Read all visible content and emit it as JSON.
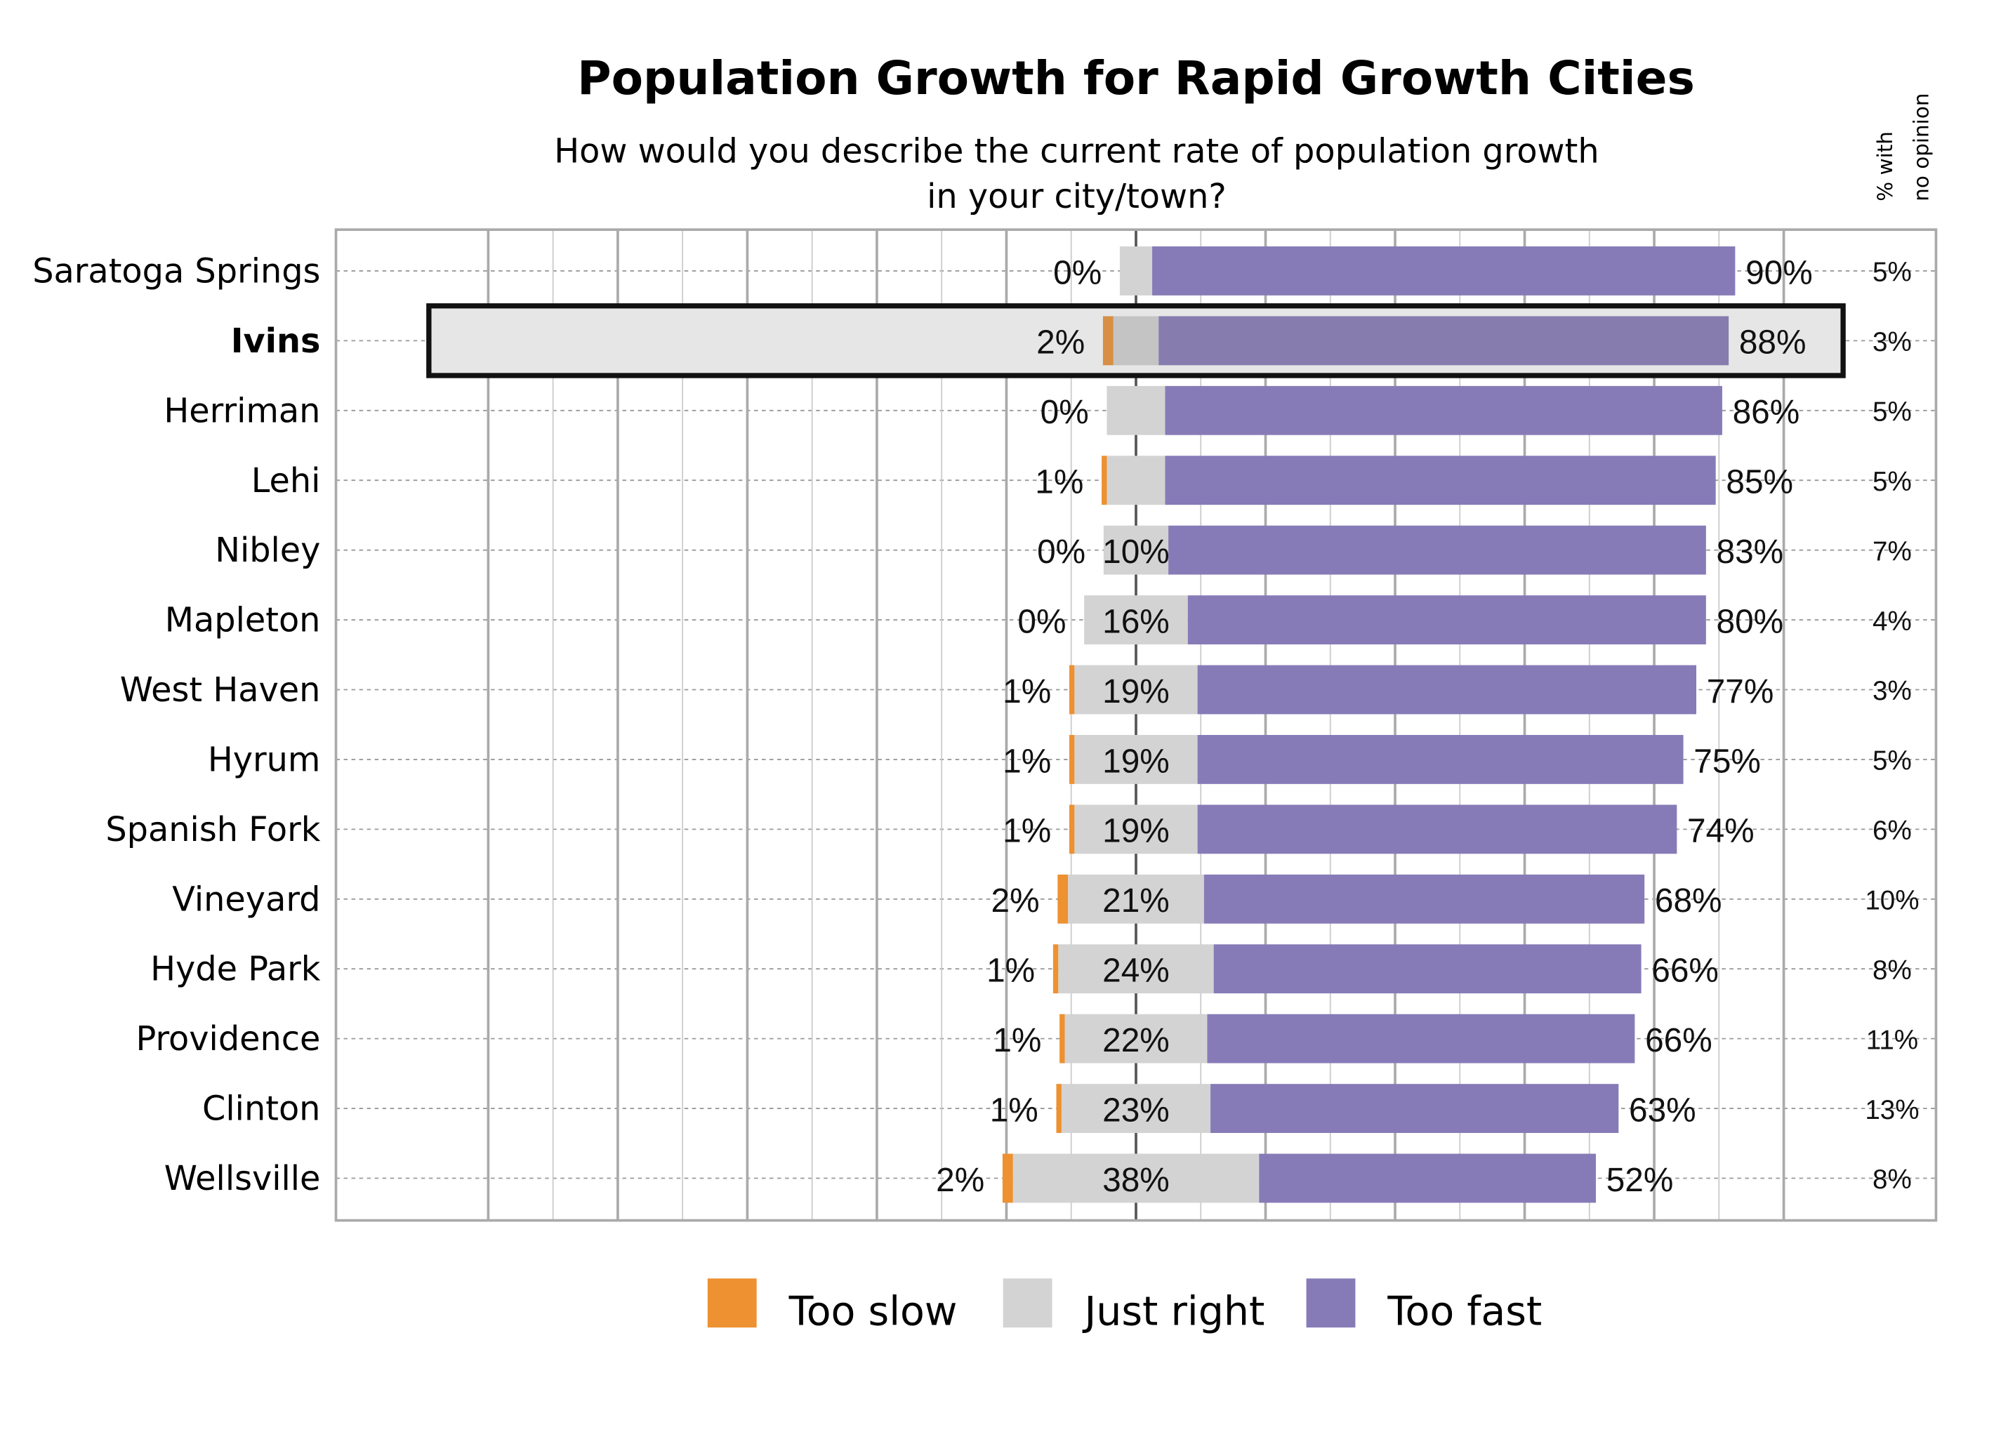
{
  "chart_data": {
    "type": "bar",
    "orientation": "horizontal-diverging-stacked",
    "title": "Population Growth for Rapid Growth Cities",
    "subtitle": [
      "How would you describe the current rate of population growth",
      "in your city/town?"
    ],
    "side_header": [
      "% with",
      "no opinion"
    ],
    "highlight": "Ivins",
    "categories": [
      "Saratoga Springs",
      "Ivins",
      "Herriman",
      "Lehi",
      "Nibley",
      "Mapleton",
      "West Haven",
      "Hyrum",
      "Spanish Fork",
      "Vineyard",
      "Hyde Park",
      "Providence",
      "Clinton",
      "Wellsville"
    ],
    "series": [
      {
        "name": "Too slow",
        "color": "#ed9131",
        "values": [
          0,
          2,
          0,
          1,
          0,
          0,
          1,
          1,
          1,
          2,
          1,
          1,
          1,
          2
        ]
      },
      {
        "name": "Just right",
        "color": "#d3d3d3",
        "values": [
          5,
          7,
          9,
          9,
          10,
          16,
          19,
          19,
          19,
          21,
          24,
          22,
          23,
          38
        ],
        "labels_shown": [
          false,
          false,
          false,
          false,
          true,
          true,
          true,
          true,
          true,
          true,
          true,
          true,
          true,
          true
        ]
      },
      {
        "name": "Too fast",
        "color": "#877bb7",
        "values": [
          90,
          88,
          86,
          85,
          83,
          80,
          77,
          75,
          74,
          68,
          66,
          66,
          63,
          52
        ]
      }
    ],
    "no_opinion": [
      5,
      3,
      5,
      5,
      7,
      4,
      3,
      5,
      6,
      10,
      8,
      11,
      13,
      8
    ],
    "xlim": [
      -124,
      124
    ],
    "grid": true,
    "legend_placement": "bottom"
  }
}
